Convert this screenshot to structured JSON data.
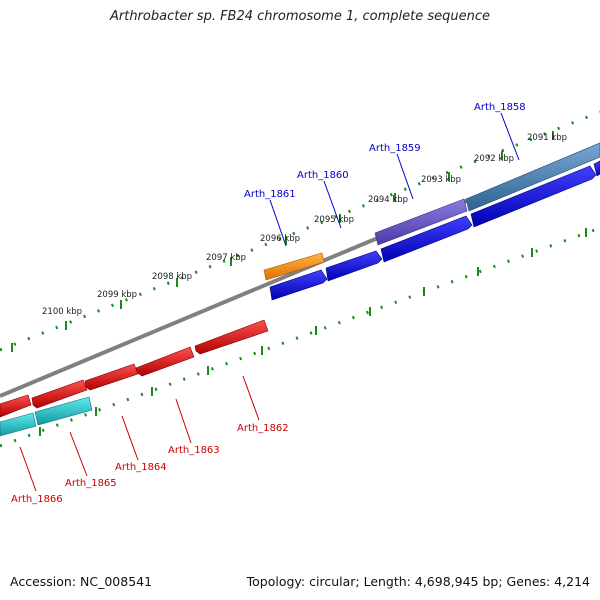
{
  "title": "Arthrobacter sp. FB24 chromosome 1, complete sequence",
  "footer": {
    "accession": "Accession: NC_008541",
    "summary": "Topology: circular; Length: 4,698,945 bp; Genes: 4,214"
  },
  "kbp_labels": [
    "2100 kbp",
    "2099 kbp",
    "2098 kbp",
    "2097 kbp",
    "2096 kbp",
    "2095 kbp",
    "2094 kbp",
    "2093 kbp",
    "2092 kbp",
    "2091 kbp"
  ],
  "genes_forward": [
    "Arth_1858",
    "Arth_1859",
    "Arth_1860",
    "Arth_1861"
  ],
  "genes_reverse": [
    "Arth_1862",
    "Arth_1863",
    "Arth_1864",
    "Arth_1865",
    "Arth_1866"
  ],
  "colors": {
    "forward_label": "#0000cc",
    "reverse_label": "#cc0000",
    "cds_forward": "#0000ee",
    "cds_reverse": "#ee0000",
    "orange": "#ff8c00",
    "purple": "#6a5acd",
    "steelblue": "#4682b4",
    "cyan": "#20c0c8",
    "backbone": "#808080",
    "ticks": "#1a8a1a"
  }
}
